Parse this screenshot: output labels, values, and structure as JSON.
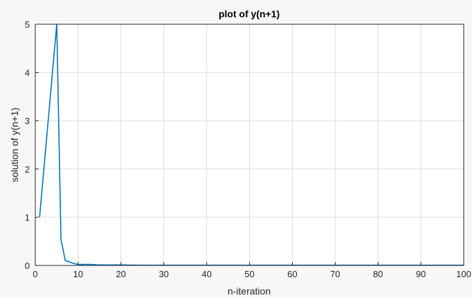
{
  "chart_data": {
    "type": "line",
    "title": "plot of y(n+1)",
    "xlabel": "n-iteration",
    "ylabel": "solution of y(n+1)",
    "xlim": [
      0,
      100
    ],
    "ylim": [
      0,
      5
    ],
    "xticks": [
      0,
      10,
      20,
      30,
      40,
      50,
      60,
      70,
      80,
      90,
      100
    ],
    "yticks": [
      0,
      1,
      2,
      3,
      4,
      5
    ],
    "grid": true,
    "series": [
      {
        "color": "#0072BD",
        "x": [
          1,
          2,
          3,
          4,
          5,
          6,
          7,
          8,
          9,
          10,
          11,
          12,
          13,
          14,
          15,
          16,
          17,
          18,
          19,
          20,
          25,
          30,
          35,
          40,
          45,
          50,
          55,
          60,
          65,
          70,
          75,
          80,
          85,
          90,
          95,
          100
        ],
        "y": [
          1,
          2,
          3,
          4,
          5,
          0.54,
          0.1,
          0.07,
          0.04,
          0.02,
          0.02,
          0.02,
          0.02,
          0.015,
          0.01,
          0.01,
          0.01,
          0.01,
          0.01,
          0.01,
          0.005,
          0.005,
          0.005,
          0.005,
          0.005,
          0.005,
          0.005,
          0.005,
          0.005,
          0.005,
          0.005,
          0.005,
          0.005,
          0.005,
          0.005,
          0.005
        ]
      }
    ]
  }
}
